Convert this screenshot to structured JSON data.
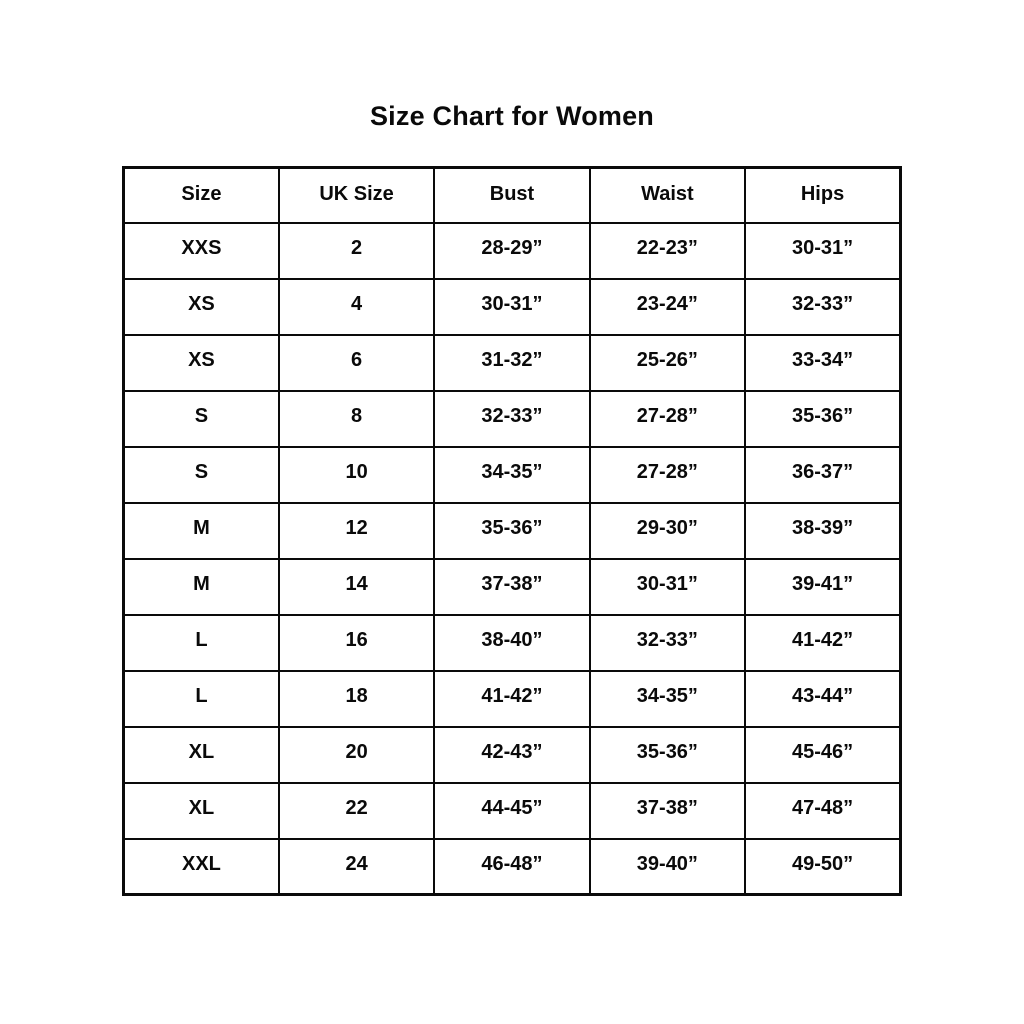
{
  "page": {
    "title": "Size Chart for Women"
  },
  "colors": {
    "background": "#ffffff",
    "text": "#0a0a0a",
    "border": "#0a0a0a"
  },
  "table": {
    "headers": [
      "Size",
      "UK Size",
      "Bust",
      "Waist",
      "Hips"
    ],
    "rows": [
      [
        "XXS",
        "2",
        "28-29”",
        "22-23”",
        "30-31”"
      ],
      [
        "XS",
        "4",
        "30-31”",
        "23-24”",
        "32-33”"
      ],
      [
        "XS",
        "6",
        "31-32”",
        "25-26”",
        "33-34”"
      ],
      [
        "S",
        "8",
        "32-33”",
        "27-28”",
        "35-36”"
      ],
      [
        "S",
        "10",
        "34-35”",
        "27-28”",
        "36-37”"
      ],
      [
        "M",
        "12",
        "35-36”",
        "29-30”",
        "38-39”"
      ],
      [
        "M",
        "14",
        "37-38”",
        "30-31”",
        "39-41”"
      ],
      [
        "L",
        "16",
        "38-40”",
        "32-33”",
        "41-42”"
      ],
      [
        "L",
        "18",
        "41-42”",
        "34-35”",
        "43-44”"
      ],
      [
        "XL",
        "20",
        "42-43”",
        "35-36”",
        "45-46”"
      ],
      [
        "XL",
        "22",
        "44-45”",
        "37-38”",
        "47-48”"
      ],
      [
        "XXL",
        "24",
        "46-48”",
        "39-40”",
        "49-50”"
      ]
    ]
  }
}
